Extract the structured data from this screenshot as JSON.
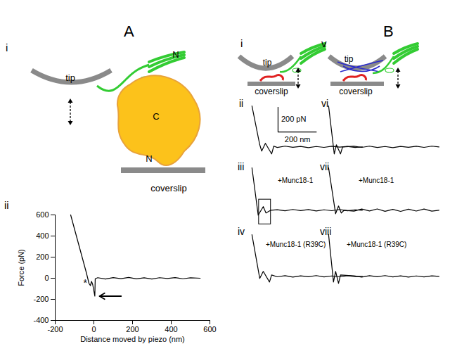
{
  "figure": {
    "A": {
      "label": "A",
      "schematic": {
        "numeral": "i",
        "tip": "tip",
        "n_top": "N",
        "c": "C",
        "n_bottom": "N",
        "coverslip": "coverslip"
      }
    },
    "B": {
      "label": "B",
      "schematics": [
        {
          "numeral": "i",
          "tip": "tip",
          "coverslip": "coverslip"
        },
        {
          "numeral": "v",
          "tip": "tip",
          "coverslip": "coverslip"
        }
      ]
    }
  },
  "chart_data": [
    {
      "type": "line",
      "numeral": "ii",
      "x_label": "Distance moved by piezo (nm)",
      "y_label": "Force (pN)",
      "x": [
        -120,
        -80,
        -40,
        -25,
        -18,
        -12,
        -6,
        0,
        5,
        7,
        20,
        60,
        100,
        140,
        180,
        220,
        260,
        300,
        340,
        380,
        420,
        460,
        500,
        550
      ],
      "values": [
        600,
        330,
        60,
        -50,
        -70,
        -30,
        -60,
        -120,
        -170,
        -5,
        5,
        -8,
        6,
        -4,
        8,
        -6,
        4,
        -7,
        5,
        -3,
        6,
        -5,
        4,
        0
      ],
      "xlim": [
        -200,
        600
      ],
      "ylim": [
        -400,
        600
      ],
      "xticks": [
        -200,
        0,
        200,
        400,
        600
      ],
      "yticks": [
        600,
        400,
        200,
        0,
        -200,
        -400
      ],
      "color": "#000000",
      "annotations": [
        {
          "text": "*",
          "x": -45,
          "y": -45
        }
      ]
    },
    {
      "type": "line",
      "numeral": "ii",
      "x": [
        0,
        40,
        50,
        69,
        101,
        112,
        130,
        170,
        210,
        250,
        290,
        330,
        370,
        410,
        450,
        490,
        530,
        567
      ],
      "values": [
        331,
        17,
        -34,
        29,
        -57,
        6,
        -5,
        6,
        -3,
        4,
        -6,
        3,
        -4,
        5,
        -2,
        4,
        -5,
        0
      ],
      "xlim": [
        -50,
        600
      ],
      "ylim": [
        -300,
        400
      ],
      "tick_labels": false,
      "color": "#000000",
      "scale_bar": {
        "x": 200,
        "y": 200,
        "x_label": "200 nm",
        "y_label": "200 pN"
      }
    },
    {
      "type": "line",
      "numeral": "iii",
      "annotation": "+Munc18-1",
      "x": [
        0,
        32,
        58,
        72,
        97,
        130,
        170,
        210,
        250,
        290,
        330,
        370,
        410,
        450,
        490,
        530,
        567
      ],
      "values": [
        343,
        -40,
        29,
        -23,
        0,
        4,
        -5,
        6,
        -3,
        5,
        -6,
        3,
        -4,
        6,
        -5,
        3,
        0
      ],
      "xlim": [
        -50,
        600
      ],
      "ylim": [
        -300,
        400
      ],
      "tick_labels": false,
      "color": "#000000",
      "highlight": {
        "x": [
          36,
          97
        ],
        "y": [
          -114,
          86
        ]
      }
    },
    {
      "type": "line",
      "numeral": "iv",
      "annotation": "+Munc18-1 (R39C)",
      "x": [
        0,
        40,
        58,
        90,
        101,
        130,
        170,
        210,
        250,
        290,
        330,
        370,
        410,
        450,
        490,
        530,
        567
      ],
      "values": [
        337,
        -17,
        40,
        -46,
        11,
        -4,
        5,
        -6,
        4,
        -3,
        6,
        -5,
        3,
        -4,
        5,
        -2,
        0
      ],
      "xlim": [
        -50,
        600
      ],
      "ylim": [
        -300,
        400
      ],
      "tick_labels": false,
      "color": "#000000"
    },
    {
      "type": "line",
      "numeral": "vi",
      "x": [
        0,
        29,
        40,
        61,
        72,
        130,
        170,
        210,
        250,
        290,
        330,
        370,
        410,
        450,
        490,
        530,
        567
      ],
      "values": [
        331,
        -57,
        17,
        -57,
        0,
        5,
        -4,
        6,
        -5,
        3,
        -6,
        4,
        -3,
        5,
        -4,
        6,
        0
      ],
      "xlim": [
        -50,
        600
      ],
      "ylim": [
        -300,
        400
      ],
      "tick_labels": false,
      "color": "#000000"
    },
    {
      "type": "line",
      "numeral": "vii",
      "annotation": "+Munc18-1",
      "x": [
        0,
        36,
        51,
        65,
        80,
        130,
        170,
        210,
        250,
        290,
        330,
        370,
        410,
        450,
        490,
        530,
        567
      ],
      "values": [
        343,
        -29,
        34,
        -23,
        0,
        -8,
        9,
        -6,
        10,
        -9,
        7,
        -10,
        8,
        -7,
        9,
        -8,
        0
      ],
      "xlim": [
        -50,
        600
      ],
      "ylim": [
        -300,
        400
      ],
      "tick_labels": false,
      "color": "#000000"
    },
    {
      "type": "line",
      "numeral": "viii",
      "annotation": "+Munc18-1 (R39C)",
      "x": [
        0,
        25,
        36,
        51,
        61,
        130,
        170,
        210,
        250,
        290,
        330,
        370,
        410,
        450,
        490,
        530,
        567
      ],
      "values": [
        337,
        -46,
        40,
        -57,
        11,
        4,
        -6,
        5,
        -3,
        6,
        -5,
        4,
        -6,
        3,
        -5,
        4,
        0
      ],
      "xlim": [
        -50,
        600
      ],
      "ylim": [
        -300,
        400
      ],
      "tick_labels": false,
      "color": "#000000"
    }
  ]
}
